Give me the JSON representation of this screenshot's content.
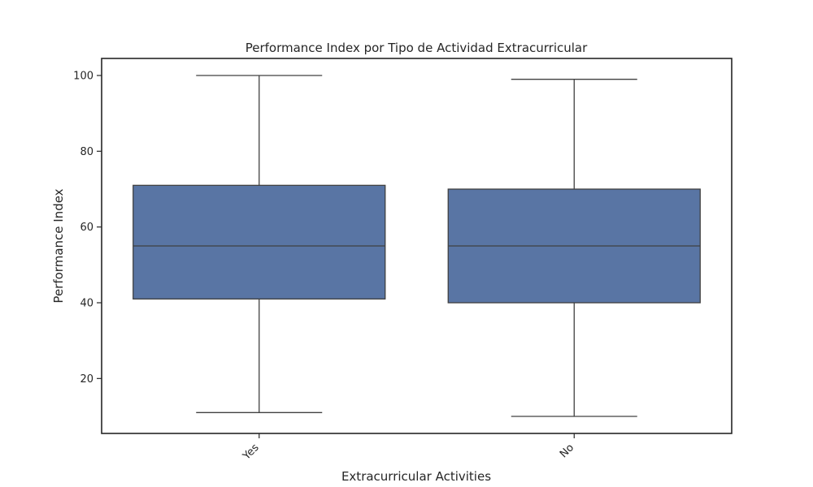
{
  "chart_data": {
    "type": "box",
    "title": "Performance Index por Tipo de Actividad Extracurricular",
    "xlabel": "Extracurricular Activities",
    "ylabel": "Performance Index",
    "categories": [
      "Yes",
      "No"
    ],
    "boxes": [
      {
        "category": "Yes",
        "min": 11,
        "q1": 41,
        "median": 55,
        "q3": 71,
        "max": 100
      },
      {
        "category": "No",
        "min": 10,
        "q1": 40,
        "median": 55,
        "q3": 70,
        "max": 99
      }
    ],
    "yticks": [
      20,
      40,
      60,
      80,
      100
    ],
    "ylim": [
      5.5,
      104.5
    ],
    "x_tick_rotation": "45 degrees",
    "grid": false,
    "box_color": "#5975A4",
    "line_color": "#404040"
  }
}
